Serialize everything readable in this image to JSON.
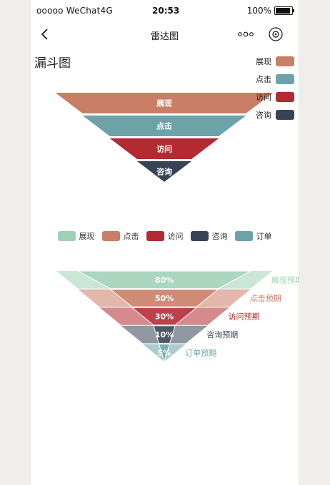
{
  "status": {
    "carrier": "ooooo WeChat4G",
    "time": "20:53",
    "battery": "100%"
  },
  "nav": {
    "title": "雷达图"
  },
  "section_title": "漏斗图",
  "colors": {
    "zhanxian": "#c97e66",
    "dianji": "#6ba3a9",
    "fangwen": "#b32a31",
    "zixun": "#364456",
    "dingdan": "#6ba3a9",
    "expect_zhanxian": "#9fd1b6"
  },
  "chart_data": [
    {
      "type": "funnel",
      "legend": [
        "展现",
        "点击",
        "访问",
        "咨询"
      ],
      "categories": [
        "展现",
        "点击",
        "访问",
        "咨询"
      ],
      "values": [
        100,
        75,
        50,
        25
      ]
    },
    {
      "type": "funnel",
      "legend": [
        "展现",
        "点击",
        "访问",
        "咨询",
        "订单"
      ],
      "categories": [
        "展现预期",
        "点击预期",
        "访问预期",
        "咨询预期",
        "订单预期"
      ],
      "values": [
        80,
        50,
        30,
        10,
        5
      ],
      "labels": [
        "80%",
        "50%",
        "30%",
        "10%",
        "5%"
      ]
    }
  ]
}
